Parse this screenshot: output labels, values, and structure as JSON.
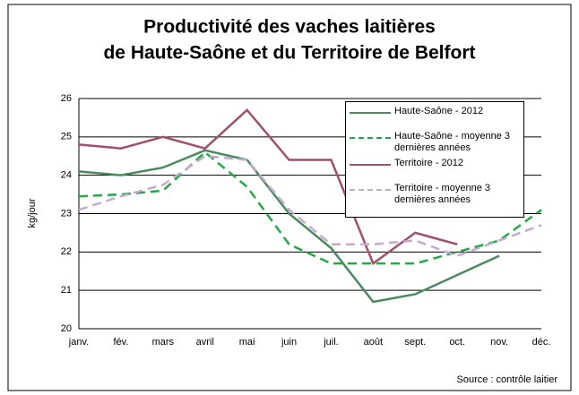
{
  "chart_data": {
    "type": "line",
    "title": [
      "Productivité des vaches laitières",
      "de Haute-Saône et du Territoire de Belfort"
    ],
    "y_label": "kg/jour",
    "source": "Source : contrôle laitier",
    "categories": [
      "janv.",
      "fév.",
      "mars",
      "avril",
      "mai",
      "juin",
      "juil.",
      "août",
      "sept.",
      "oct.",
      "nov.",
      "déc."
    ],
    "series": [
      {
        "name": "Haute-Saône - 2012",
        "color": "#4a8a5e",
        "dashed": false,
        "values": [
          24.1,
          24.0,
          24.2,
          24.65,
          24.4,
          23.0,
          22.1,
          20.7,
          20.9,
          21.4,
          21.9,
          null
        ]
      },
      {
        "name": "Haute-Saône - moyenne 3 dernières années",
        "color": "#22aa44",
        "dashed": true,
        "values": [
          23.45,
          23.5,
          23.6,
          24.6,
          23.7,
          22.2,
          21.7,
          21.7,
          21.7,
          22.0,
          22.3,
          23.1
        ]
      },
      {
        "name": "Territoire - 2012",
        "color": "#a0506e",
        "dashed": false,
        "values": [
          24.8,
          24.7,
          25.0,
          24.7,
          25.7,
          24.4,
          24.4,
          21.7,
          22.5,
          22.2,
          null,
          null
        ]
      },
      {
        "name": "Territoire - moyenne 3 dernières années",
        "color": "#c8a8d0",
        "dashed": true,
        "values": [
          23.1,
          23.45,
          23.75,
          24.5,
          24.4,
          23.1,
          22.2,
          22.2,
          22.3,
          21.9,
          22.3,
          22.7
        ]
      }
    ],
    "ylim": [
      20,
      26
    ],
    "yticks": [
      20,
      21,
      22,
      23,
      24,
      25,
      26
    ],
    "grid": true
  }
}
